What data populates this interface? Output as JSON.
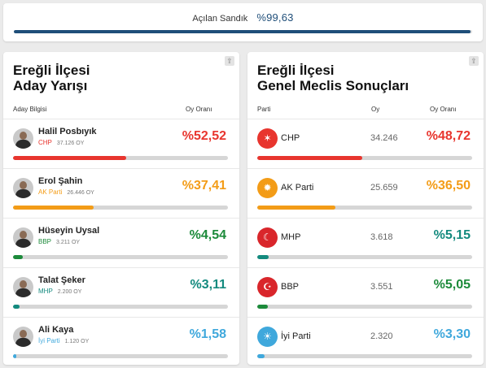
{
  "summary": {
    "label": "Açılan Sandık",
    "value": "%99,63",
    "percent": 99.63
  },
  "left": {
    "title_line1": "Ereğli İlçesi",
    "title_line2": "Aday Yarışı",
    "col_candidate": "Aday Bilgisi",
    "col_rate": "Oy Oranı",
    "candidates": [
      {
        "name": "Halil Posbıyık",
        "party": "CHP",
        "votes": "37.126 OY",
        "pct": "%52,52",
        "value": 52.52,
        "color": "#e8352e"
      },
      {
        "name": "Erol Şahin",
        "party": "AK Parti",
        "votes": "26.446 OY",
        "pct": "%37,41",
        "value": 37.41,
        "color": "#f39c17"
      },
      {
        "name": "Hüseyin Uysal",
        "party": "BBP",
        "votes": "3.211 OY",
        "pct": "%4,54",
        "value": 4.54,
        "color": "#1c8a3a"
      },
      {
        "name": "Talat Şeker",
        "party": "MHP",
        "votes": "2.200 OY",
        "pct": "%3,11",
        "value": 3.11,
        "color": "#138a7e"
      },
      {
        "name": "Ali Kaya",
        "party": "İyi Parti",
        "votes": "1.120 OY",
        "pct": "%1,58",
        "value": 1.58,
        "color": "#3fa8dc"
      }
    ]
  },
  "right": {
    "title_line1": "Ereğli İlçesi",
    "title_line2": "Genel Meclis Sonuçları",
    "col_party": "Parti",
    "col_votes": "Oy",
    "col_rate": "Oy Oranı",
    "parties": [
      {
        "name": "CHP",
        "votes": "34.246",
        "pct": "%48,72",
        "value": 48.72,
        "color": "#e8352e",
        "logo_bg": "#e8352e",
        "logo_icon": "chp-logo-icon",
        "logo_glyph": "✶"
      },
      {
        "name": "AK Parti",
        "votes": "25.659",
        "pct": "%36,50",
        "value": 36.5,
        "color": "#f39c17",
        "logo_bg": "#f39c17",
        "logo_icon": "akp-logo-icon",
        "logo_glyph": "✹"
      },
      {
        "name": "MHP",
        "votes": "3.618",
        "pct": "%5,15",
        "value": 5.15,
        "color": "#138a7e",
        "logo_bg": "#d9262b",
        "logo_icon": "mhp-logo-icon",
        "logo_glyph": "☾"
      },
      {
        "name": "BBP",
        "votes": "3.551",
        "pct": "%5,05",
        "value": 5.05,
        "color": "#1c8a3a",
        "logo_bg": "#d9262b",
        "logo_icon": "bbp-logo-icon",
        "logo_glyph": "☪"
      },
      {
        "name": "İyi Parti",
        "votes": "2.320",
        "pct": "%3,30",
        "value": 3.3,
        "color": "#3fa8dc",
        "logo_bg": "#3fa8dc",
        "logo_icon": "iyi-logo-icon",
        "logo_glyph": "☀"
      }
    ]
  }
}
